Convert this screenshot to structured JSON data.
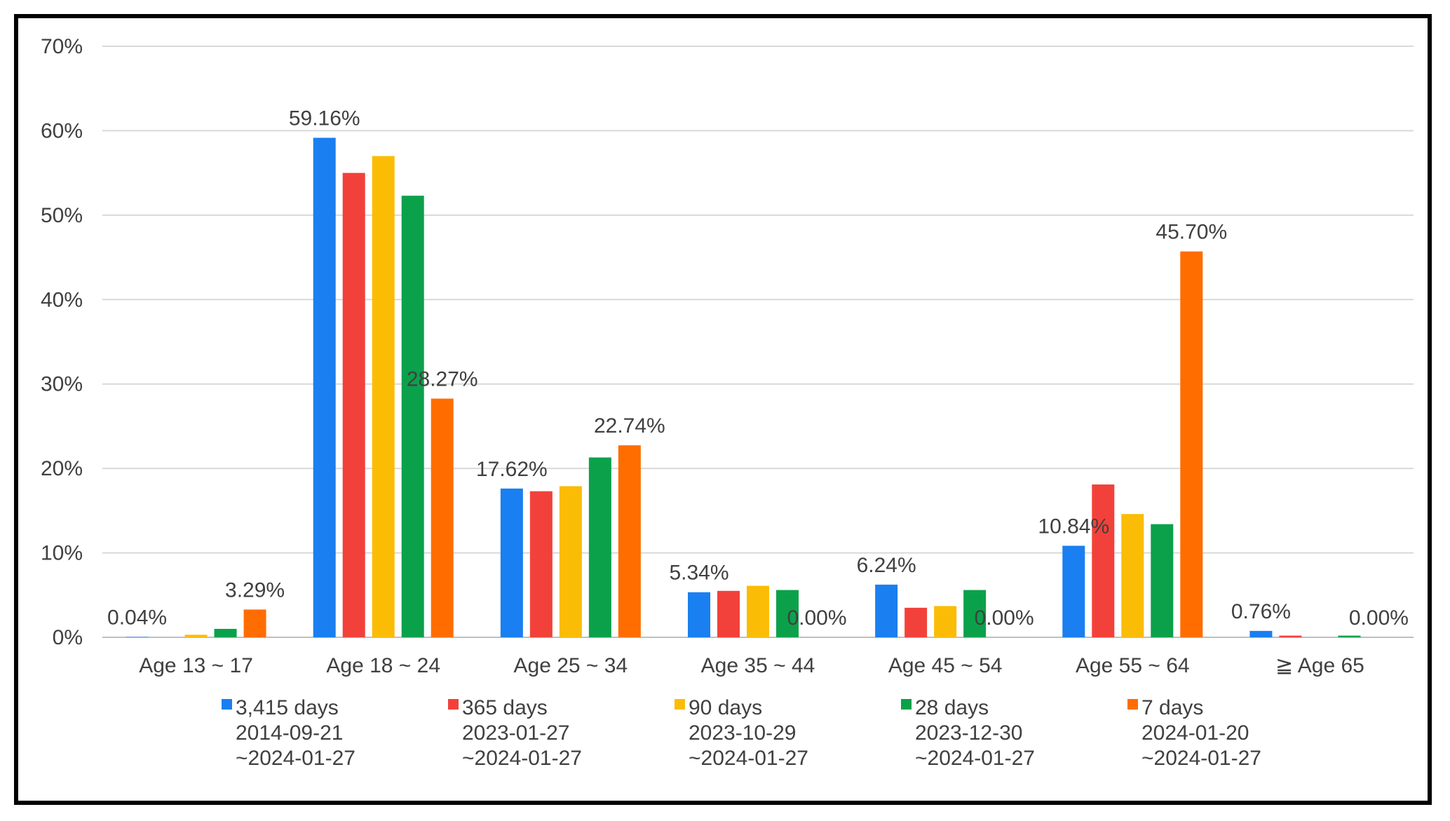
{
  "chart_data": {
    "type": "bar",
    "title": "",
    "xlabel": "",
    "ylabel": "",
    "ylim": [
      0,
      70
    ],
    "ytick_step": 10,
    "ytick_labels": [
      "0%",
      "10%",
      "20%",
      "30%",
      "40%",
      "50%",
      "60%",
      "70%"
    ],
    "grid": true,
    "legend_position": "bottom",
    "categories": [
      "Age 13 ~ 17",
      "Age 18 ~ 24",
      "Age 25 ~ 34",
      "Age 35 ~ 44",
      "Age 45 ~ 54",
      "Age 55 ~ 64",
      "≧ Age 65"
    ],
    "series": [
      {
        "name": "3,415 days",
        "period_start": "2014-09-21",
        "period_end": "~2024-01-27",
        "color": "#1a7ff0",
        "values": [
          0.04,
          59.16,
          17.62,
          5.34,
          6.24,
          10.84,
          0.76
        ]
      },
      {
        "name": "365 days",
        "period_start": "2023-01-27",
        "period_end": "~2024-01-27",
        "color": "#f2413a",
        "values": [
          0.0,
          55.0,
          17.3,
          5.5,
          3.5,
          18.1,
          0.2
        ]
      },
      {
        "name": "90 days",
        "period_start": "2023-10-29",
        "period_end": "~2024-01-27",
        "color": "#fbbc05",
        "values": [
          0.3,
          57.0,
          17.9,
          6.1,
          3.7,
          14.6,
          0.0
        ]
      },
      {
        "name": "28 days",
        "period_start": "2023-12-30",
        "period_end": "~2024-01-27",
        "color": "#0ba14b",
        "values": [
          1.0,
          52.3,
          21.3,
          5.6,
          5.6,
          13.4,
          0.2
        ]
      },
      {
        "name": "7 days",
        "period_start": "2024-01-20",
        "period_end": "~2024-01-27",
        "color": "#ff6d01",
        "values": [
          3.29,
          28.27,
          22.74,
          0.0,
          0.0,
          45.7,
          0.0
        ]
      }
    ],
    "data_labels": [
      {
        "category": 0,
        "series": 0,
        "text": "0.04%"
      },
      {
        "category": 0,
        "series": 4,
        "text": "3.29%"
      },
      {
        "category": 1,
        "series": 0,
        "text": "59.16%"
      },
      {
        "category": 1,
        "series": 4,
        "text": "28.27%"
      },
      {
        "category": 2,
        "series": 0,
        "text": "17.62%"
      },
      {
        "category": 2,
        "series": 4,
        "text": "22.74%"
      },
      {
        "category": 3,
        "series": 0,
        "text": "5.34%"
      },
      {
        "category": 3,
        "series": 4,
        "text": "0.00%"
      },
      {
        "category": 4,
        "series": 0,
        "text": "6.24%"
      },
      {
        "category": 4,
        "series": 4,
        "text": "0.00%"
      },
      {
        "category": 5,
        "series": 0,
        "text": "10.84%"
      },
      {
        "category": 5,
        "series": 4,
        "text": "45.70%"
      },
      {
        "category": 6,
        "series": 0,
        "text": "0.76%"
      },
      {
        "category": 6,
        "series": 4,
        "text": "0.00%"
      }
    ]
  }
}
